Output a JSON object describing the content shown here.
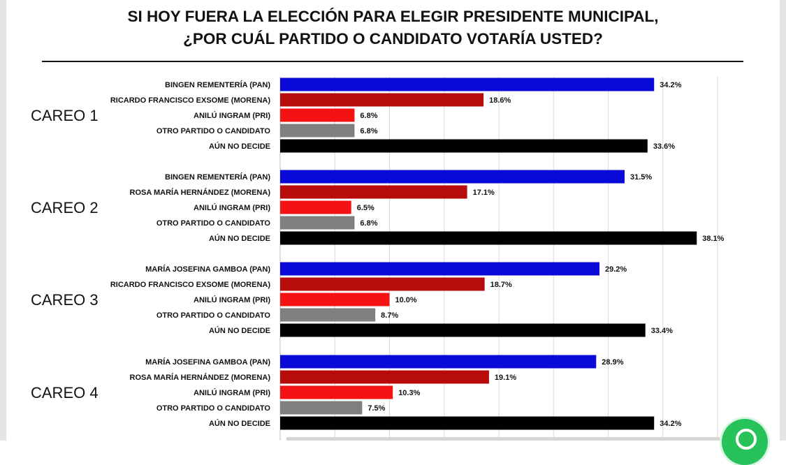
{
  "title": {
    "line1": "SI HOY FUERA LA ELECCIÓN PARA ELEGIR PRESIDENTE MUNICIPAL,",
    "line2": "¿POR CUÁL PARTIDO O CANDIDATO VOTARÍA USTED?"
  },
  "colors": {
    "PAN": "#0a0ad8",
    "MORENA": "#b80b0b",
    "PRI": "#f51212",
    "OTRO": "#7f7f7f",
    "NO_DECIDE": "#000000",
    "grid": "#d9d9d9",
    "whatsapp": "#27c25a"
  },
  "icons": {
    "whatsapp": "whatsapp-icon"
  },
  "chart_data": {
    "type": "bar",
    "orientation": "horizontal",
    "value_unit": "%",
    "xlim": [
      0,
      40
    ],
    "grid": true,
    "legend": "none",
    "groups": [
      {
        "name": "CAREO 1",
        "bars": [
          {
            "label": "BINGEN REMENTERÍA (PAN)",
            "value": 34.2,
            "value_label": "34.2%",
            "party": "PAN"
          },
          {
            "label": "RICARDO FRANCISCO EXSOME (MORENA)",
            "value": 18.6,
            "value_label": "18.6%",
            "party": "MORENA"
          },
          {
            "label": "ANILÚ INGRAM (PRI)",
            "value": 6.8,
            "value_label": "6.8%",
            "party": "PRI"
          },
          {
            "label": "OTRO PARTIDO O CANDIDATO",
            "value": 6.8,
            "value_label": "6.8%",
            "party": "OTRO"
          },
          {
            "label": "AÚN NO DECIDE",
            "value": 33.6,
            "value_label": "33.6%",
            "party": "NO_DECIDE"
          }
        ]
      },
      {
        "name": "CAREO 2",
        "bars": [
          {
            "label": "BINGEN REMENTERÍA (PAN)",
            "value": 31.5,
            "value_label": "31.5%",
            "party": "PAN"
          },
          {
            "label": "ROSA MARÍA HERNÁNDEZ (MORENA)",
            "value": 17.1,
            "value_label": "17.1%",
            "party": "MORENA"
          },
          {
            "label": "ANILÚ INGRAM (PRI)",
            "value": 6.5,
            "value_label": "6.5%",
            "party": "PRI"
          },
          {
            "label": "OTRO PARTIDO O CANDIDATO",
            "value": 6.8,
            "value_label": "6.8%",
            "party": "OTRO"
          },
          {
            "label": "AÚN NO DECIDE",
            "value": 38.1,
            "value_label": "38.1%",
            "party": "NO_DECIDE"
          }
        ]
      },
      {
        "name": "CAREO 3",
        "bars": [
          {
            "label": "MARÍA JOSEFINA GAMBOA (PAN)",
            "value": 29.2,
            "value_label": "29.2%",
            "party": "PAN"
          },
          {
            "label": "RICARDO FRANCISCO EXSOME (MORENA)",
            "value": 18.7,
            "value_label": "18.7%",
            "party": "MORENA"
          },
          {
            "label": "ANILÚ INGRAM (PRI)",
            "value": 10.0,
            "value_label": "10.0%",
            "party": "PRI"
          },
          {
            "label": "OTRO PARTIDO O CANDIDATO",
            "value": 8.7,
            "value_label": "8.7%",
            "party": "OTRO"
          },
          {
            "label": "AÚN NO DECIDE",
            "value": 33.4,
            "value_label": "33.4%",
            "party": "NO_DECIDE"
          }
        ]
      },
      {
        "name": "CAREO 4",
        "bars": [
          {
            "label": "MARÍA JOSEFINA GAMBOA (PAN)",
            "value": 28.9,
            "value_label": "28.9%",
            "party": "PAN"
          },
          {
            "label": "ROSA MARÍA HERNÁNDEZ (MORENA)",
            "value": 19.1,
            "value_label": "19.1%",
            "party": "MORENA"
          },
          {
            "label": "ANILÚ INGRAM (PRI)",
            "value": 10.3,
            "value_label": "10.3%",
            "party": "PRI"
          },
          {
            "label": "OTRO PARTIDO O CANDIDATO",
            "value": 7.5,
            "value_label": "7.5%",
            "party": "OTRO"
          },
          {
            "label": "AÚN NO DECIDE",
            "value": 34.2,
            "value_label": "34.2%",
            "party": "NO_DECIDE"
          }
        ]
      }
    ]
  }
}
